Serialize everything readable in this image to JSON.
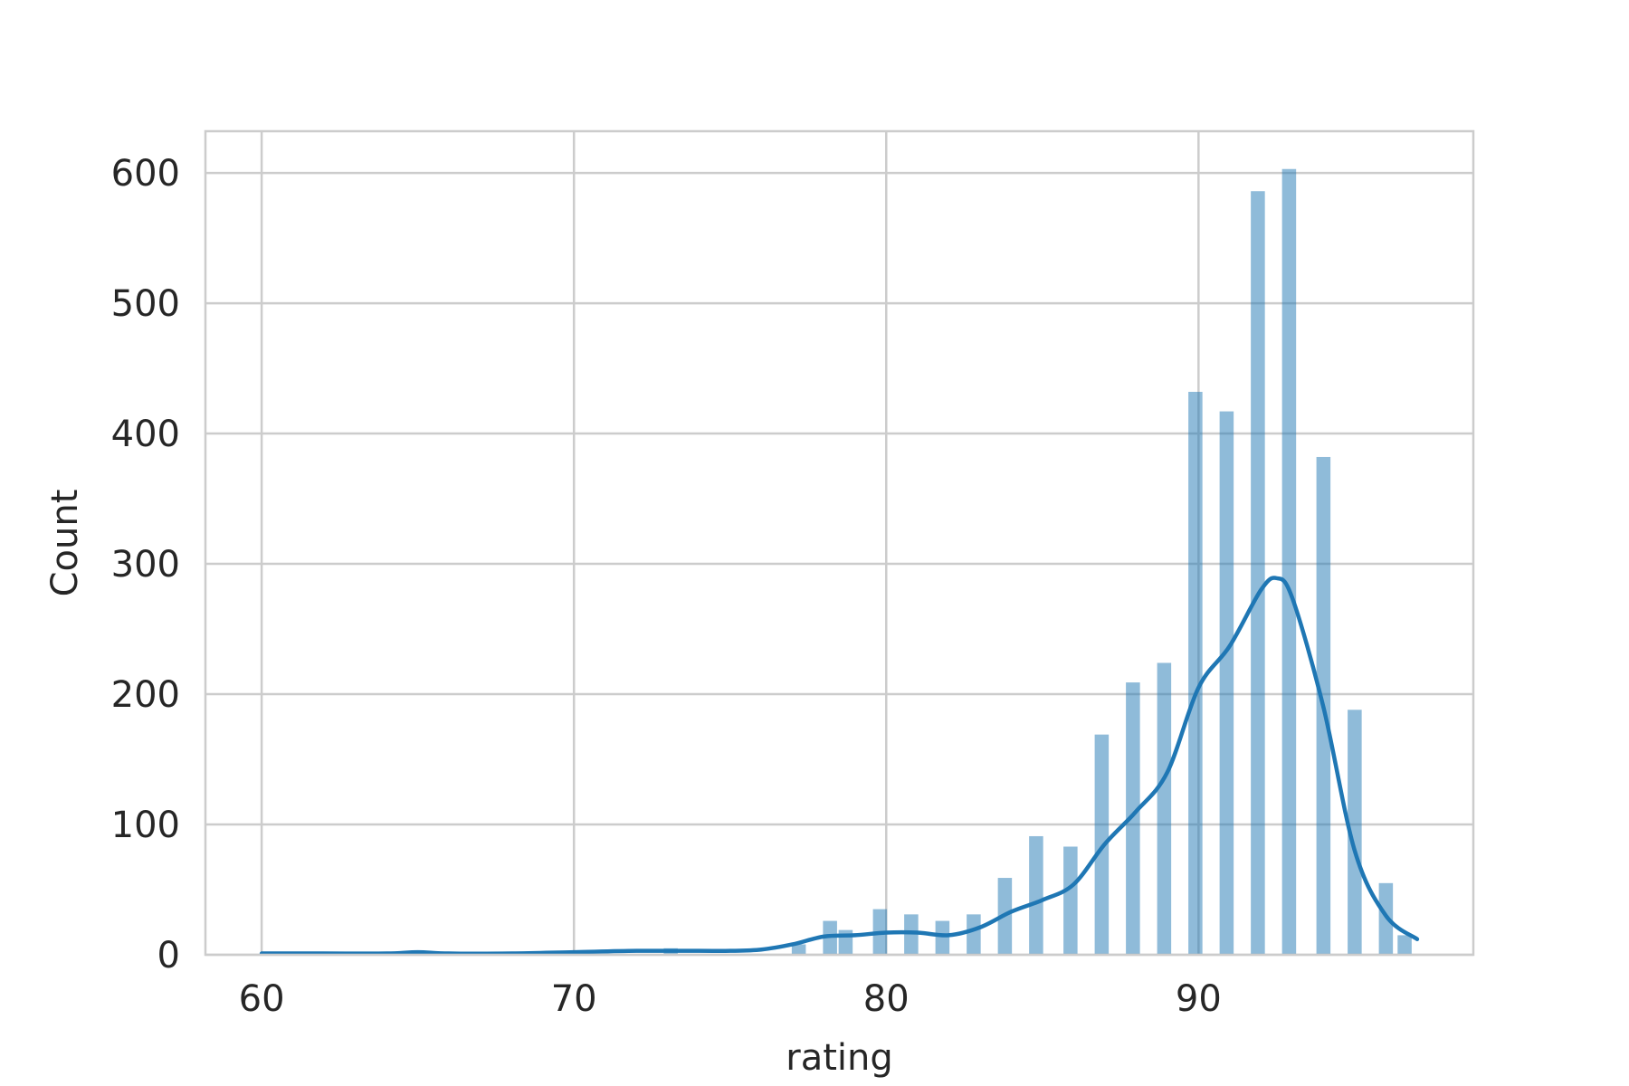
{
  "chart_data": {
    "type": "bar",
    "xlabel": "rating",
    "ylabel": "Count",
    "xlim": [
      58.2,
      98.8
    ],
    "ylim": [
      0,
      632
    ],
    "xticks": [
      60,
      70,
      80,
      90
    ],
    "yticks": [
      0,
      100,
      200,
      300,
      400,
      500,
      600
    ],
    "grid": true,
    "colors": {
      "bars": "#1f77b4",
      "kde": "#1f77b4",
      "grid": "#cccccc"
    },
    "bins": [
      {
        "x": 73.1,
        "count": 5
      },
      {
        "x": 77.2,
        "count": 8
      },
      {
        "x": 78.2,
        "count": 26
      },
      {
        "x": 78.7,
        "count": 19
      },
      {
        "x": 79.8,
        "count": 35
      },
      {
        "x": 80.8,
        "count": 31
      },
      {
        "x": 81.8,
        "count": 26
      },
      {
        "x": 82.8,
        "count": 31
      },
      {
        "x": 83.8,
        "count": 59
      },
      {
        "x": 84.8,
        "count": 91
      },
      {
        "x": 85.9,
        "count": 83
      },
      {
        "x": 86.9,
        "count": 169
      },
      {
        "x": 87.9,
        "count": 209
      },
      {
        "x": 88.9,
        "count": 224
      },
      {
        "x": 89.9,
        "count": 432
      },
      {
        "x": 90.9,
        "count": 417
      },
      {
        "x": 91.9,
        "count": 586
      },
      {
        "x": 92.9,
        "count": 603
      },
      {
        "x": 94.0,
        "count": 382
      },
      {
        "x": 95.0,
        "count": 188
      },
      {
        "x": 96.0,
        "count": 55
      },
      {
        "x": 96.6,
        "count": 15
      }
    ],
    "bin_width": 0.45,
    "kde": {
      "x": [
        60,
        62,
        64,
        65,
        66,
        68,
        70,
        72,
        74,
        75,
        76,
        77,
        78,
        79,
        80,
        81,
        82,
        83,
        84,
        85,
        86,
        87,
        88,
        89,
        90,
        91,
        92,
        92.5,
        93,
        94,
        95,
        96,
        97
      ],
      "y": [
        1,
        1,
        1,
        2,
        1,
        1,
        2,
        3,
        3,
        3,
        4,
        8,
        14,
        15,
        17,
        17,
        15,
        21,
        33,
        42,
        54,
        85,
        110,
        140,
        205,
        237,
        280,
        289,
        274,
        190,
        80,
        30,
        12
      ]
    }
  }
}
